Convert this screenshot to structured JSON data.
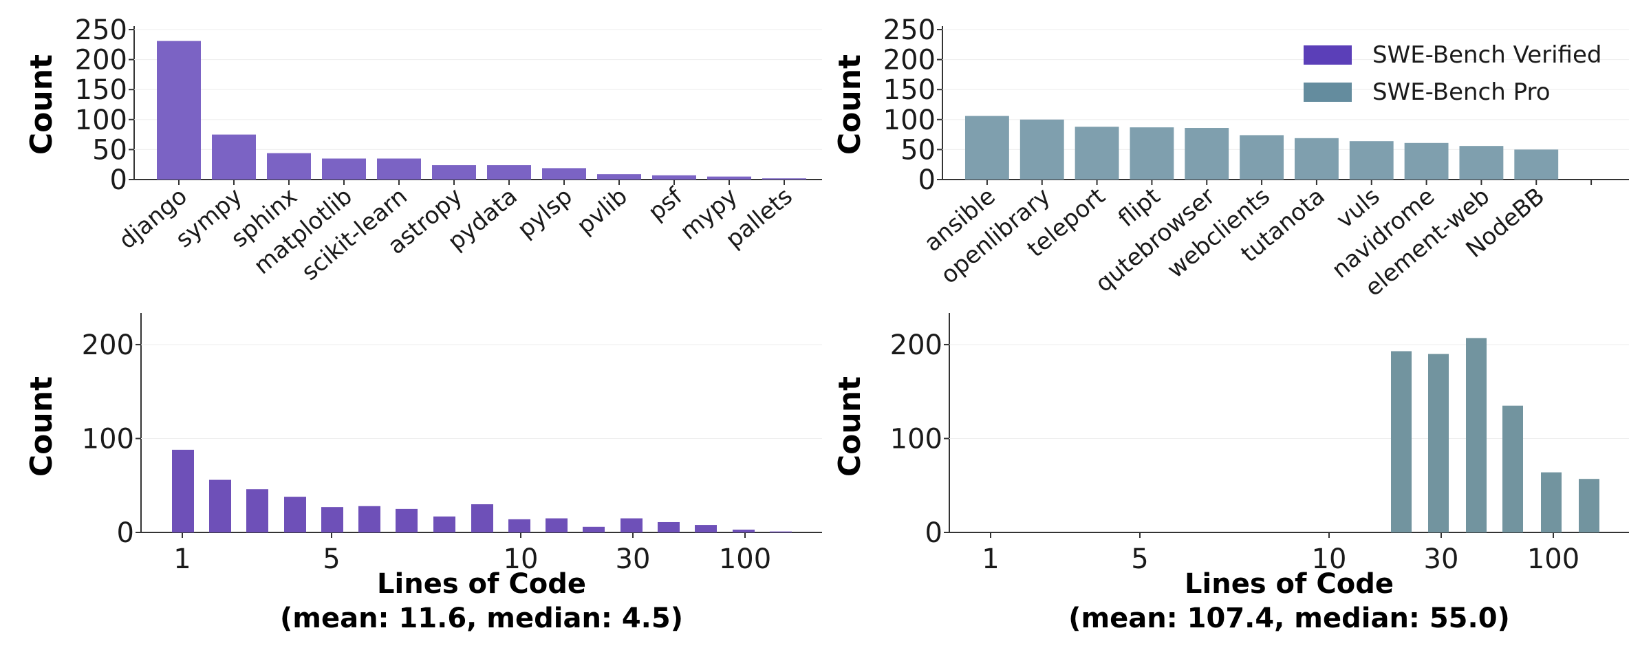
{
  "chart_data": [
    {
      "type": "bar",
      "series_name": "SWE-Bench Verified",
      "color": "#7B63C4",
      "ylabel": "Count",
      "xlabel": "",
      "ylim": [
        0,
        250
      ],
      "yticks": [
        "0",
        "50",
        "100",
        "150",
        "200",
        "250"
      ],
      "categories": [
        "django",
        "sympy",
        "sphinx",
        "matplotlib",
        "scikit-learn",
        "astropy",
        "pydata",
        "pylsp",
        "pvlib",
        "psf",
        "mypy",
        "pallets"
      ],
      "values": [
        231,
        75,
        44,
        35,
        35,
        24,
        24,
        19,
        9,
        7,
        5,
        2
      ]
    },
    {
      "type": "bar",
      "series_name": "SWE-Bench Pro",
      "color": "#7F9FAE",
      "ylabel": "Count",
      "xlabel": "",
      "ylim": [
        0,
        250
      ],
      "yticks": [
        "0",
        "50",
        "100",
        "150",
        "200",
        "250"
      ],
      "categories": [
        "ansible",
        "openlibrary",
        "teleport",
        "flipt",
        "qutebrowser",
        "webclients",
        "tutanota",
        "vuls",
        "navidrome",
        "element-web",
        "NodeBB"
      ],
      "values": [
        106,
        100,
        88,
        87,
        86,
        74,
        69,
        64,
        61,
        56,
        50
      ],
      "legend": {
        "placement": "top-right",
        "entries": [
          {
            "label": "SWE-Bench Verified",
            "color": "#5B3FB8"
          },
          {
            "label": "SWE-Bench Pro",
            "color": "#648C9E"
          }
        ]
      }
    },
    {
      "type": "bar",
      "series_name": "SWE-Bench Verified",
      "color": "#6E50B8",
      "ylabel": "Count",
      "xlabel": "Lines of Code",
      "xlabel2": "(mean: 11.6, median: 4.5)",
      "scale": "log",
      "ylim": [
        0,
        230
      ],
      "yticks": [
        "0",
        "100",
        "200"
      ],
      "xtick_labels": [
        "1",
        "5",
        "10",
        "30",
        "100"
      ],
      "xtick_values": [
        1,
        5,
        10,
        30,
        100
      ],
      "bins": [
        1,
        2,
        3,
        4,
        5,
        6,
        7,
        8,
        9,
        10,
        13,
        18,
        25,
        35,
        50,
        70,
        100
      ],
      "values": [
        88,
        56,
        46,
        38,
        27,
        28,
        25,
        17,
        30,
        14,
        15,
        6,
        15,
        11,
        8,
        3,
        1
      ]
    },
    {
      "type": "bar",
      "series_name": "SWE-Bench Pro",
      "color": "#72949F",
      "ylabel": "Count",
      "xlabel": "Lines of Code",
      "xlabel2": "(mean: 107.4, median: 55.0)",
      "scale": "log",
      "ylim": [
        0,
        230
      ],
      "yticks": [
        "0",
        "100",
        "200"
      ],
      "xtick_labels": [
        "1",
        "5",
        "10",
        "30",
        "100"
      ],
      "xtick_values": [
        1,
        5,
        10,
        30,
        100
      ],
      "bins": [
        13,
        18,
        25,
        35,
        50,
        70,
        100
      ],
      "values": [
        193,
        190,
        207,
        135,
        64,
        57,
        0
      ]
    }
  ]
}
